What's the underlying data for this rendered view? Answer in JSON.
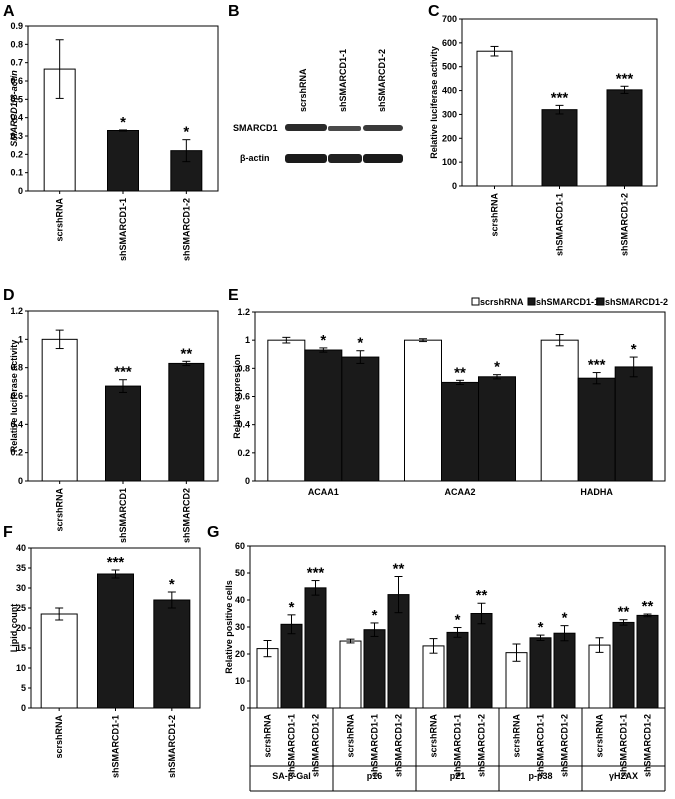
{
  "colors": {
    "white_bar": "#ffffff",
    "black_bar": "#1a1a1a",
    "axis": "#000000"
  },
  "panels": {
    "A": {
      "letter": "A"
    },
    "B": {
      "letter": "B",
      "lanes": [
        "scrshRNA",
        "shSMARCD1-1",
        "shSMARCD1-2"
      ],
      "rows": [
        "SMARCD1",
        "β-actin"
      ]
    },
    "C": {
      "letter": "C"
    },
    "D": {
      "letter": "D"
    },
    "E": {
      "letter": "E"
    },
    "F": {
      "letter": "F"
    },
    "G": {
      "letter": "G"
    }
  },
  "chart_data": [
    {
      "id": "A",
      "type": "bar",
      "ylabel": "SMARCD1/β-actin",
      "ylim": [
        0,
        0.9
      ],
      "yticks": [
        "0",
        "0.1",
        "0.2",
        "0.3",
        "0.4",
        "0.5",
        "0.6",
        "0.7",
        "0.8",
        "0.9"
      ],
      "categories": [
        "scrshRNA",
        "shSMARCD1-1",
        "shSMARCD1-2"
      ],
      "values": [
        0.665,
        0.33,
        0.22
      ],
      "errors": [
        0.16,
        0.003,
        0.06
      ],
      "fills": [
        "white",
        "black",
        "black"
      ],
      "significance": [
        "",
        "*",
        "*"
      ]
    },
    {
      "id": "C",
      "type": "bar",
      "ylabel": "Relative luciferase activity",
      "ylim": [
        0,
        700
      ],
      "yticks": [
        "0",
        "100",
        "200",
        "300",
        "400",
        "500",
        "600",
        "700"
      ],
      "categories": [
        "scrshRNA",
        "shSMARCD1-1",
        "shSMARCD1-2"
      ],
      "values": [
        565,
        320,
        403
      ],
      "errors": [
        20,
        18,
        15
      ],
      "fills": [
        "white",
        "black",
        "black"
      ],
      "significance": [
        "",
        "***",
        "***"
      ]
    },
    {
      "id": "D",
      "type": "bar",
      "ylabel": "Relative luciferase activity",
      "ylim": [
        0,
        1.2
      ],
      "yticks": [
        "0",
        "0.2",
        "0.4",
        "0.6",
        "0.8",
        "1",
        "1.2"
      ],
      "categories": [
        "scrshRNA",
        "shSMARCD1",
        "shSMARCD2"
      ],
      "values": [
        1.0,
        0.67,
        0.83
      ],
      "errors": [
        0.065,
        0.045,
        0.015
      ],
      "fills": [
        "white",
        "black",
        "black"
      ],
      "significance": [
        "",
        "***",
        "**"
      ]
    },
    {
      "id": "E",
      "type": "bar",
      "ylabel": "Relative expression",
      "ylim": [
        0,
        1.2
      ],
      "yticks": [
        "0",
        "0.2",
        "0.4",
        "0.6",
        "0.8",
        "1",
        "1.2"
      ],
      "legend_position": "top-right",
      "categories": [
        "ACAA1",
        "ACAA2",
        "HADHA"
      ],
      "series": [
        {
          "name": "scrshRNA",
          "fill": "white",
          "values": [
            1.0,
            1.0,
            1.0
          ],
          "errors": [
            0.02,
            0.01,
            0.04
          ],
          "significance": [
            "",
            "",
            ""
          ]
        },
        {
          "name": "shSMARCD1-1",
          "fill": "black",
          "values": [
            0.93,
            0.7,
            0.73
          ],
          "errors": [
            0.015,
            0.015,
            0.04
          ],
          "significance": [
            "*",
            "**",
            "***"
          ]
        },
        {
          "name": "shSMARCD1-2",
          "fill": "black",
          "values": [
            0.88,
            0.74,
            0.81
          ],
          "errors": [
            0.045,
            0.015,
            0.07
          ],
          "significance": [
            "*",
            "*",
            "*"
          ]
        }
      ]
    },
    {
      "id": "F",
      "type": "bar",
      "ylabel": "Lipid count",
      "ylim": [
        0,
        40
      ],
      "yticks": [
        "0",
        "5",
        "10",
        "15",
        "20",
        "25",
        "30",
        "35",
        "40"
      ],
      "categories": [
        "scrshRNA",
        "shSMARCD1-1",
        "shSMARCD1-2"
      ],
      "values": [
        23.5,
        33.5,
        27.0
      ],
      "errors": [
        1.5,
        1.0,
        2.0
      ],
      "fills": [
        "white",
        "black",
        "black"
      ],
      "significance": [
        "",
        "***",
        "*"
      ]
    },
    {
      "id": "G",
      "type": "bar",
      "ylabel": "Relative positive cells",
      "ylim": [
        0,
        60
      ],
      "yticks": [
        "0",
        "10",
        "20",
        "30",
        "40",
        "50",
        "60"
      ],
      "categories": [
        "SA-β-Gal",
        "p16",
        "p21",
        "p-p38",
        "γH2AX"
      ],
      "sub_labels": [
        "scrshRNA",
        "shSMARCD1-1",
        "shSMARCD1-2"
      ],
      "series": [
        {
          "name": "scrshRNA",
          "fill": "white",
          "values": [
            22,
            24.8,
            23,
            20.5,
            23.3
          ],
          "errors": [
            3,
            0.7,
            2.7,
            3.2,
            2.7
          ],
          "significance": [
            "",
            "",
            "",
            "",
            ""
          ]
        },
        {
          "name": "shSMARCD1-1",
          "fill": "black",
          "values": [
            31,
            29,
            28,
            26,
            31.7
          ],
          "errors": [
            3.5,
            2.5,
            1.8,
            1,
            1
          ],
          "significance": [
            "*",
            "*",
            "*",
            "*",
            "**"
          ]
        },
        {
          "name": "shSMARCD1-2",
          "fill": "black",
          "values": [
            44.5,
            42,
            35,
            27.7,
            34.3
          ],
          "errors": [
            2.7,
            6.7,
            3.8,
            2.8,
            0.5
          ],
          "significance": [
            "***",
            "**",
            "**",
            "*",
            "**"
          ]
        }
      ]
    }
  ]
}
